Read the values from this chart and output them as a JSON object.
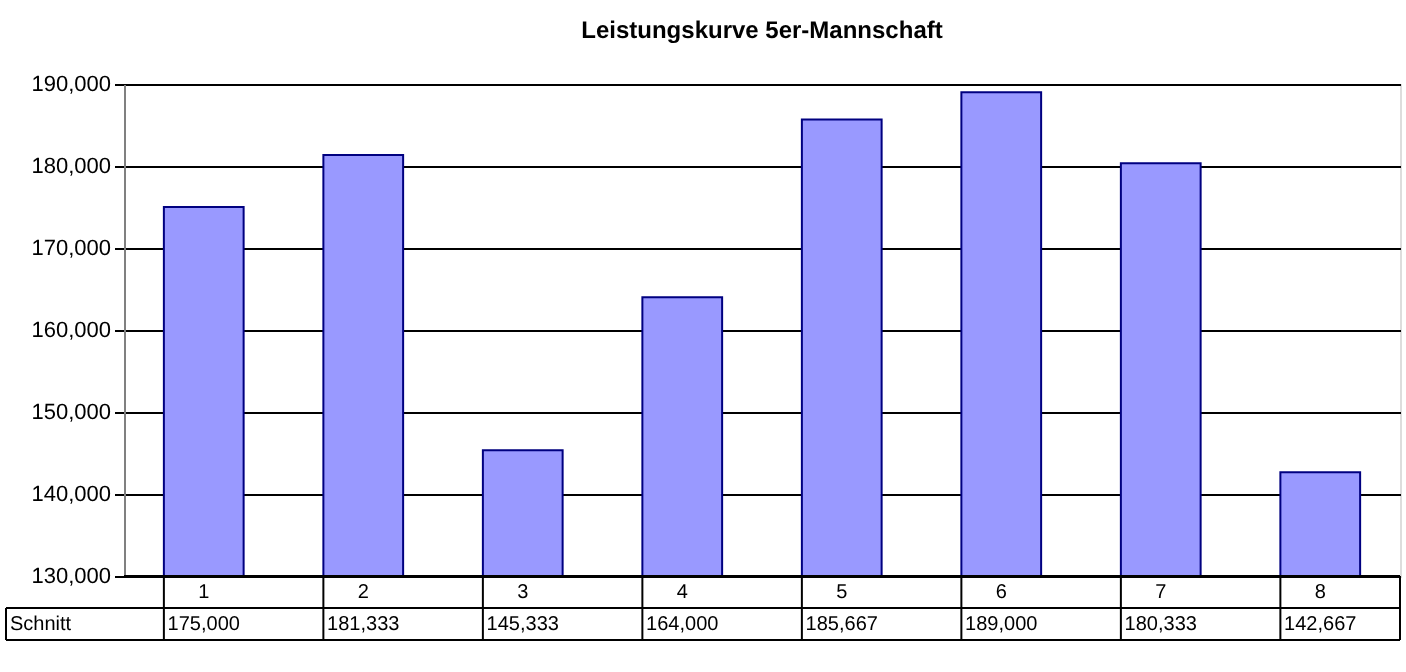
{
  "chart_data": {
    "type": "bar",
    "title": "Leistungskurve 5er-Mannschaft",
    "categories": [
      "1",
      "2",
      "3",
      "4",
      "5",
      "6",
      "7",
      "8"
    ],
    "series": [
      {
        "name": "Schnitt",
        "color": "#9999ff",
        "values": [
          175000,
          181333,
          145333,
          164000,
          185667,
          189000,
          180333,
          142667
        ],
        "value_labels": [
          "175,000",
          "181,333",
          "145,333",
          "164,000",
          "185,667",
          "189,000",
          "180,333",
          "142,667"
        ]
      }
    ],
    "ylim": [
      130000,
      190000
    ],
    "yticks": [
      {
        "value": 130000,
        "label": "130,000"
      },
      {
        "value": 140000,
        "label": "140,000"
      },
      {
        "value": 150000,
        "label": "150,000"
      },
      {
        "value": 160000,
        "label": "160,000"
      },
      {
        "value": 170000,
        "label": "170,000"
      },
      {
        "value": 180000,
        "label": "180,000"
      },
      {
        "value": 190000,
        "label": "190,000"
      }
    ],
    "grid": "y"
  }
}
